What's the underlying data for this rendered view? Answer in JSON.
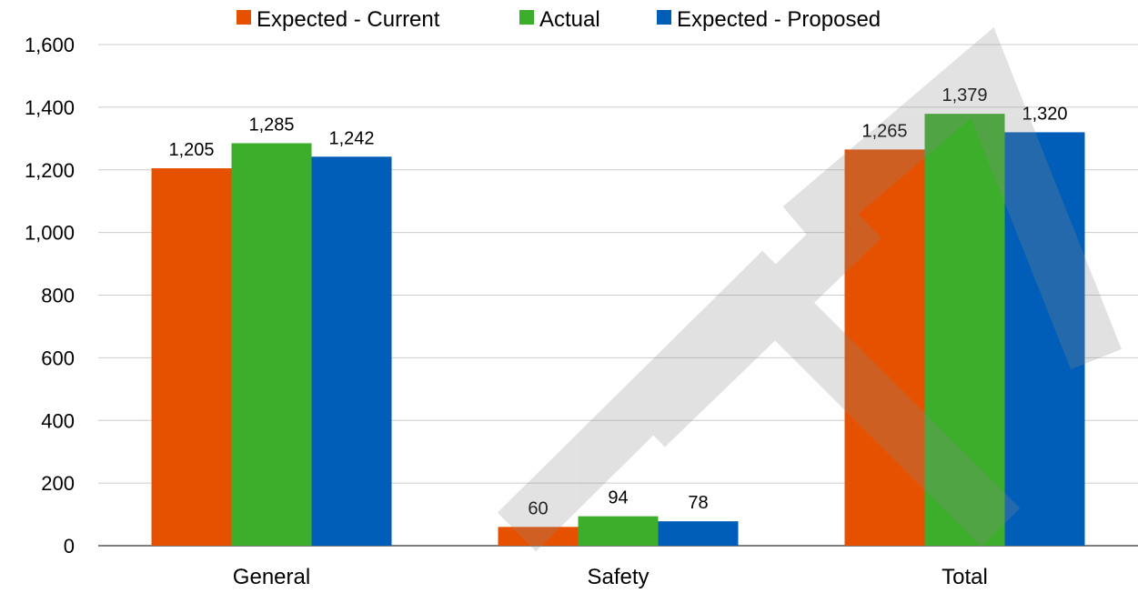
{
  "chart_data": {
    "type": "bar",
    "title": "",
    "xlabel": "",
    "ylabel": "",
    "categories": [
      "General",
      "Safety",
      "Total"
    ],
    "series": [
      {
        "name": "Expected - Current",
        "color": "#E65100",
        "values": [
          1205,
          60,
          1265
        ]
      },
      {
        "name": "Actual",
        "color": "#3DAE2B",
        "values": [
          1285,
          94,
          1379
        ]
      },
      {
        "name": "Expected - Proposed",
        "color": "#005EB8",
        "values": [
          1242,
          78,
          1320
        ]
      }
    ],
    "ylim": [
      0,
      1600
    ],
    "yticks": [
      0,
      200,
      400,
      600,
      800,
      1000,
      1200,
      1400,
      1600
    ],
    "ytick_labels": [
      "0",
      "200",
      "400",
      "600",
      "800",
      "1,000",
      "1,200",
      "1,400",
      "1,600"
    ],
    "data_labels": [
      [
        "1,205",
        "60",
        "1,265"
      ],
      [
        "1,285",
        "94",
        "1,379"
      ],
      [
        "1,242",
        "78",
        "1,320"
      ]
    ],
    "grid": true,
    "legend_position": "top-center",
    "watermark": "NF"
  }
}
